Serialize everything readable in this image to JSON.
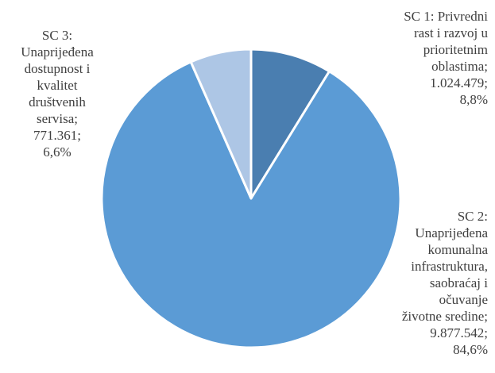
{
  "chart_data": {
    "type": "pie",
    "title": "",
    "start_angle_deg": 0,
    "direction": "clockwise",
    "slices": [
      {
        "label_lines": [
          "SC 1: Privredni",
          "rast i razvoj u",
          "prioritetnim",
          "oblastima;",
          "1.024.479;",
          "8,8%"
        ],
        "value": 1024479,
        "percent": 8.8,
        "color": "#4a7eb0"
      },
      {
        "label_lines": [
          "SC 2:",
          "Unaprijeđena",
          "komunalna",
          "infrastruktura,",
          "saobraćaj i",
          "očuvanje",
          "životne sredine;",
          "9.877.542;",
          "84,6%"
        ],
        "value": 9877542,
        "percent": 84.6,
        "color": "#5b9bd5"
      },
      {
        "label_lines": [
          "SC 3:",
          "Unaprijeđena",
          "dostupnost i",
          "kvalitet",
          "društvenih",
          "servisa;",
          "771.361;",
          "6,6%"
        ],
        "value": 771361,
        "percent": 6.6,
        "color": "#adc6e5"
      }
    ],
    "legend": "none"
  }
}
